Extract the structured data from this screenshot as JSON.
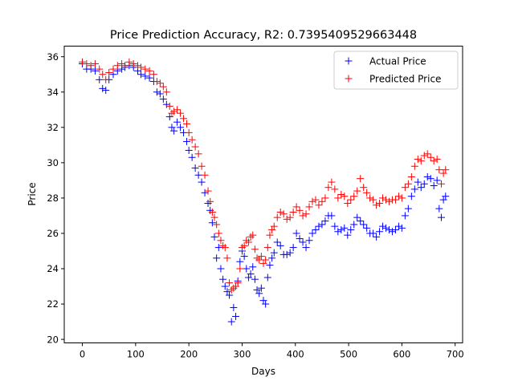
{
  "chart_data": {
    "type": "scatter",
    "title": "Price Prediction Accuracy, R2: 0.7395409529663448",
    "xlabel": "Days",
    "ylabel": "Price",
    "xlim": [
      -34,
      714
    ],
    "ylim": [
      19.8,
      36.6
    ],
    "x_ticks": [
      0,
      100,
      200,
      300,
      400,
      500,
      600,
      700
    ],
    "y_ticks": [
      20,
      22,
      24,
      26,
      28,
      30,
      32,
      34,
      36
    ],
    "grid": false,
    "legend_position": "top-right",
    "marker": "+",
    "series": [
      {
        "name": "Actual Price",
        "color": "#0000ff",
        "points": [
          [
            0,
            35.6
          ],
          [
            8,
            35.3
          ],
          [
            16,
            35.3
          ],
          [
            24,
            35.2
          ],
          [
            32,
            34.7
          ],
          [
            38,
            34.2
          ],
          [
            44,
            34.1
          ],
          [
            50,
            34.7
          ],
          [
            58,
            35.0
          ],
          [
            66,
            35.2
          ],
          [
            74,
            35.3
          ],
          [
            80,
            35.4
          ],
          [
            88,
            35.5
          ],
          [
            96,
            35.4
          ],
          [
            104,
            35.2
          ],
          [
            110,
            35.0
          ],
          [
            118,
            34.9
          ],
          [
            126,
            34.8
          ],
          [
            134,
            34.6
          ],
          [
            140,
            34.0
          ],
          [
            146,
            33.9
          ],
          [
            152,
            33.6
          ],
          [
            158,
            33.3
          ],
          [
            164,
            32.6
          ],
          [
            168,
            32.0
          ],
          [
            172,
            31.8
          ],
          [
            178,
            32.3
          ],
          [
            184,
            32.0
          ],
          [
            190,
            31.7
          ],
          [
            196,
            31.2
          ],
          [
            200,
            30.7
          ],
          [
            206,
            30.3
          ],
          [
            212,
            29.7
          ],
          [
            218,
            29.3
          ],
          [
            224,
            28.9
          ],
          [
            230,
            28.3
          ],
          [
            236,
            27.7
          ],
          [
            240,
            27.3
          ],
          [
            244,
            26.6
          ],
          [
            248,
            25.8
          ],
          [
            252,
            24.6
          ],
          [
            256,
            25.2
          ],
          [
            260,
            24.0
          ],
          [
            264,
            23.4
          ],
          [
            268,
            23.0
          ],
          [
            272,
            22.7
          ],
          [
            276,
            22.5
          ],
          [
            280,
            21.0
          ],
          [
            284,
            21.8
          ],
          [
            288,
            21.3
          ],
          [
            292,
            23.3
          ],
          [
            296,
            24.4
          ],
          [
            300,
            25.0
          ],
          [
            304,
            24.7
          ],
          [
            308,
            24.0
          ],
          [
            312,
            23.5
          ],
          [
            316,
            23.7
          ],
          [
            320,
            24.1
          ],
          [
            324,
            23.4
          ],
          [
            328,
            22.8
          ],
          [
            332,
            22.6
          ],
          [
            336,
            22.9
          ],
          [
            340,
            22.2
          ],
          [
            344,
            22.0
          ],
          [
            348,
            23.5
          ],
          [
            352,
            24.2
          ],
          [
            356,
            24.6
          ],
          [
            360,
            24.9
          ],
          [
            366,
            25.5
          ],
          [
            372,
            25.3
          ],
          [
            378,
            24.8
          ],
          [
            384,
            24.8
          ],
          [
            390,
            24.9
          ],
          [
            396,
            25.2
          ],
          [
            402,
            26.0
          ],
          [
            408,
            25.7
          ],
          [
            414,
            25.5
          ],
          [
            420,
            25.2
          ],
          [
            426,
            25.6
          ],
          [
            432,
            26.0
          ],
          [
            438,
            26.2
          ],
          [
            444,
            26.4
          ],
          [
            450,
            26.5
          ],
          [
            456,
            26.7
          ],
          [
            462,
            27.0
          ],
          [
            468,
            27.0
          ],
          [
            474,
            26.4
          ],
          [
            480,
            26.1
          ],
          [
            486,
            26.2
          ],
          [
            492,
            26.3
          ],
          [
            498,
            25.9
          ],
          [
            504,
            26.2
          ],
          [
            510,
            26.5
          ],
          [
            516,
            26.9
          ],
          [
            522,
            26.7
          ],
          [
            528,
            26.5
          ],
          [
            534,
            26.3
          ],
          [
            540,
            26.0
          ],
          [
            546,
            26.0
          ],
          [
            552,
            25.8
          ],
          [
            558,
            26.1
          ],
          [
            564,
            26.4
          ],
          [
            570,
            26.3
          ],
          [
            576,
            26.2
          ],
          [
            582,
            26.1
          ],
          [
            588,
            26.2
          ],
          [
            594,
            26.4
          ],
          [
            600,
            26.3
          ],
          [
            606,
            27.0
          ],
          [
            612,
            27.4
          ],
          [
            618,
            28.1
          ],
          [
            624,
            28.5
          ],
          [
            630,
            28.9
          ],
          [
            636,
            28.6
          ],
          [
            642,
            28.8
          ],
          [
            648,
            29.2
          ],
          [
            654,
            29.1
          ],
          [
            660,
            28.7
          ],
          [
            666,
            29.0
          ],
          [
            670,
            27.4
          ],
          [
            674,
            26.9
          ],
          [
            678,
            27.9
          ],
          [
            682,
            28.1
          ]
        ]
      },
      {
        "name": "Predicted Price",
        "color": "#ff0000",
        "points": [
          [
            0,
            35.7
          ],
          [
            8,
            35.6
          ],
          [
            16,
            35.5
          ],
          [
            24,
            35.6
          ],
          [
            32,
            35.3
          ],
          [
            38,
            35.0
          ],
          [
            44,
            34.7
          ],
          [
            50,
            35.1
          ],
          [
            58,
            35.3
          ],
          [
            66,
            35.5
          ],
          [
            74,
            35.6
          ],
          [
            80,
            35.5
          ],
          [
            88,
            35.7
          ],
          [
            96,
            35.6
          ],
          [
            104,
            35.5
          ],
          [
            110,
            35.4
          ],
          [
            118,
            35.3
          ],
          [
            126,
            35.2
          ],
          [
            134,
            35.0
          ],
          [
            140,
            34.6
          ],
          [
            146,
            34.5
          ],
          [
            152,
            34.3
          ],
          [
            158,
            34.0
          ],
          [
            164,
            33.2
          ],
          [
            168,
            32.8
          ],
          [
            172,
            32.9
          ],
          [
            178,
            33.0
          ],
          [
            184,
            32.8
          ],
          [
            190,
            32.5
          ],
          [
            196,
            32.2
          ],
          [
            200,
            31.7
          ],
          [
            206,
            31.3
          ],
          [
            212,
            30.9
          ],
          [
            218,
            30.5
          ],
          [
            224,
            29.8
          ],
          [
            230,
            29.3
          ],
          [
            236,
            28.4
          ],
          [
            240,
            27.8
          ],
          [
            244,
            27.2
          ],
          [
            248,
            26.9
          ],
          [
            252,
            26.5
          ],
          [
            256,
            26.0
          ],
          [
            260,
            25.6
          ],
          [
            264,
            25.3
          ],
          [
            268,
            25.2
          ],
          [
            272,
            24.6
          ],
          [
            276,
            23.2
          ],
          [
            280,
            22.8
          ],
          [
            284,
            22.9
          ],
          [
            288,
            23.0
          ],
          [
            292,
            23.2
          ],
          [
            296,
            24.0
          ],
          [
            300,
            25.2
          ],
          [
            304,
            25.3
          ],
          [
            308,
            25.6
          ],
          [
            312,
            25.5
          ],
          [
            316,
            25.8
          ],
          [
            320,
            25.9
          ],
          [
            324,
            25.1
          ],
          [
            328,
            24.6
          ],
          [
            332,
            24.5
          ],
          [
            336,
            24.7
          ],
          [
            340,
            24.3
          ],
          [
            344,
            24.5
          ],
          [
            348,
            25.2
          ],
          [
            352,
            25.9
          ],
          [
            356,
            26.2
          ],
          [
            360,
            26.4
          ],
          [
            366,
            26.9
          ],
          [
            372,
            27.2
          ],
          [
            378,
            27.1
          ],
          [
            384,
            26.8
          ],
          [
            390,
            26.9
          ],
          [
            396,
            27.2
          ],
          [
            402,
            27.5
          ],
          [
            408,
            27.3
          ],
          [
            414,
            27.0
          ],
          [
            420,
            27.1
          ],
          [
            426,
            27.5
          ],
          [
            432,
            27.8
          ],
          [
            438,
            27.9
          ],
          [
            444,
            27.6
          ],
          [
            450,
            27.8
          ],
          [
            456,
            28.0
          ],
          [
            462,
            28.6
          ],
          [
            468,
            28.9
          ],
          [
            474,
            28.5
          ],
          [
            480,
            28.0
          ],
          [
            486,
            28.2
          ],
          [
            492,
            28.1
          ],
          [
            498,
            27.7
          ],
          [
            504,
            27.9
          ],
          [
            510,
            28.1
          ],
          [
            516,
            28.4
          ],
          [
            522,
            29.1
          ],
          [
            528,
            28.6
          ],
          [
            534,
            28.3
          ],
          [
            540,
            28.0
          ],
          [
            546,
            27.9
          ],
          [
            552,
            27.6
          ],
          [
            558,
            27.7
          ],
          [
            564,
            28.0
          ],
          [
            570,
            27.9
          ],
          [
            576,
            27.8
          ],
          [
            582,
            27.9
          ],
          [
            588,
            27.9
          ],
          [
            594,
            28.1
          ],
          [
            600,
            28.0
          ],
          [
            606,
            28.6
          ],
          [
            612,
            28.8
          ],
          [
            618,
            29.2
          ],
          [
            624,
            29.8
          ],
          [
            630,
            30.2
          ],
          [
            636,
            30.1
          ],
          [
            642,
            30.4
          ],
          [
            648,
            30.5
          ],
          [
            654,
            30.3
          ],
          [
            660,
            30.1
          ],
          [
            666,
            30.2
          ],
          [
            670,
            29.6
          ],
          [
            674,
            28.8
          ],
          [
            678,
            29.4
          ],
          [
            682,
            29.6
          ]
        ]
      }
    ]
  }
}
